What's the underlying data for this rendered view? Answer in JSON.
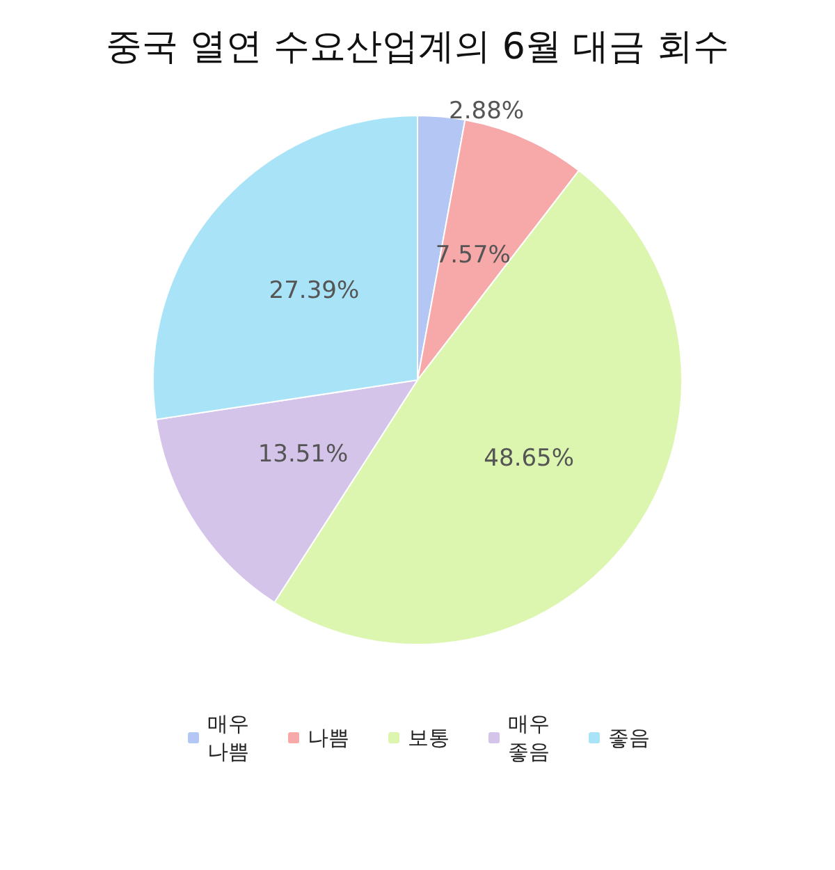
{
  "chart_data": {
    "type": "pie",
    "title": "중국 열연 수요산업계의 6월 대금 회수",
    "categories": [
      "매우 나쁨",
      "나쁨",
      "보통",
      "매우 좋음",
      "좋음"
    ],
    "values": [
      2.88,
      7.57,
      48.65,
      13.51,
      27.39
    ],
    "value_labels": [
      "2.88%",
      "7.57%",
      "48.65%",
      "13.51%",
      "27.39%"
    ],
    "colors": [
      "#b4c7f4",
      "#f7a9a9",
      "#dcf6b0",
      "#d4c4ea",
      "#a9e3f7"
    ],
    "legend": "bottom"
  }
}
